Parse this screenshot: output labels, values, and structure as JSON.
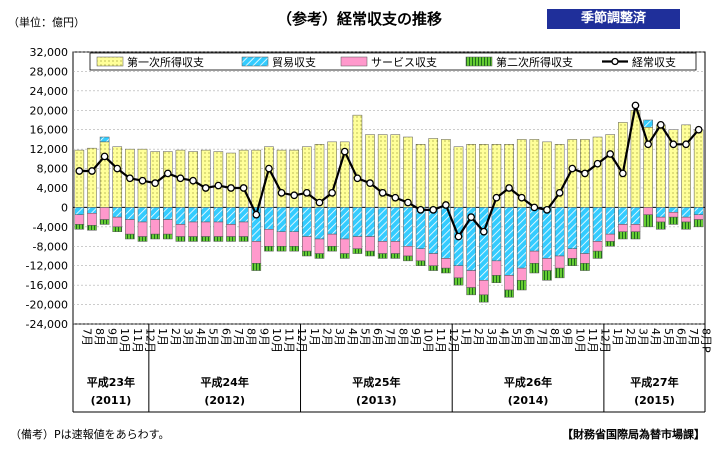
{
  "header": {
    "unit": "（単位：億円）",
    "title": "（参考）経常収支の推移",
    "badge": "季節調整済"
  },
  "footer": {
    "note": "（備考）Pは速報値をあらわす。",
    "source": "【財務省国際局為替市場課】"
  },
  "colors": {
    "primary_income": "#ffff99",
    "trade": "#33ccff",
    "services": "#ff99cc",
    "secondary_income": "#66cc33",
    "current_account": "#000000"
  },
  "chart_data": {
    "type": "bar",
    "stacked": true,
    "ylim": [
      -24000,
      32000
    ],
    "ytick_step": 4000,
    "grid": true,
    "legend_position": "top",
    "yticks": [
      "32,000",
      "28,000",
      "24,000",
      "20,000",
      "16,000",
      "12,000",
      "8,000",
      "4,000",
      "0",
      "-4,000",
      "-8,000",
      "-12,000",
      "-16,000",
      "-20,000",
      "-24,000"
    ],
    "categories": [
      "7月",
      "8月",
      "9月",
      "10月",
      "11月",
      "12月",
      "1月",
      "2月",
      "3月",
      "4月",
      "5月",
      "6月",
      "7月",
      "8月",
      "9月",
      "10月",
      "11月",
      "12月",
      "1月",
      "2月",
      "3月",
      "4月",
      "5月",
      "6月",
      "7月",
      "8月",
      "9月",
      "10月",
      "11月",
      "12月",
      "1月",
      "2月",
      "3月",
      "4月",
      "5月",
      "6月",
      "7月",
      "8月",
      "9月",
      "10月",
      "11月",
      "12月",
      "1月",
      "2月",
      "3月",
      "4月",
      "5月",
      "6月",
      "7月",
      "8月P"
    ],
    "years": [
      {
        "label": "平成23年",
        "sub": "(2011)",
        "start": 0,
        "end": 5
      },
      {
        "label": "平成24年",
        "sub": "(2012)",
        "start": 6,
        "end": 17
      },
      {
        "label": "平成25年",
        "sub": "(2013)",
        "start": 18,
        "end": 29
      },
      {
        "label": "平成26年",
        "sub": "(2014)",
        "start": 30,
        "end": 41
      },
      {
        "label": "平成27年",
        "sub": "(2015)",
        "start": 42,
        "end": 49
      }
    ],
    "series": [
      {
        "name": "第一次所得収支",
        "key": "primary_income",
        "values": [
          11800,
          12200,
          13500,
          12500,
          12000,
          12000,
          11500,
          11500,
          11800,
          11500,
          11800,
          11500,
          11200,
          11800,
          11800,
          12500,
          11800,
          11800,
          12500,
          13000,
          13500,
          13500,
          19000,
          15000,
          15000,
          15000,
          14500,
          13000,
          14200,
          14000,
          12500,
          13000,
          13000,
          13000,
          13000,
          14000,
          14000,
          13500,
          13000,
          14000,
          14000,
          14500,
          15000,
          17500,
          20000,
          16500,
          17000,
          16000,
          17000,
          16000
        ]
      },
      {
        "name": "貿易収支",
        "key": "trade",
        "values": [
          -1500,
          -1200,
          1000,
          -2000,
          -2500,
          -3000,
          -2500,
          -2500,
          -3500,
          -3000,
          -3000,
          -3000,
          -3500,
          -3000,
          -7000,
          -4500,
          -5000,
          -5000,
          -6000,
          -6500,
          -5500,
          -6500,
          -6000,
          -6000,
          -7000,
          -7000,
          -8000,
          -8500,
          -9500,
          -10500,
          -12000,
          -13000,
          -15000,
          -11000,
          -14000,
          -12500,
          -9000,
          -10500,
          -10000,
          -8500,
          -9500,
          -7000,
          -5500,
          -3500,
          -3500,
          1500,
          -2000,
          -1000,
          -2000,
          -1500
        ]
      },
      {
        "name": "サービス収支",
        "key": "services",
        "values": [
          -2000,
          -2500,
          -2500,
          -2000,
          -3000,
          -3000,
          -3000,
          -3000,
          -2500,
          -3000,
          -3000,
          -3000,
          -2500,
          -3000,
          -4500,
          -3500,
          -3000,
          -3000,
          -3000,
          -3000,
          -2500,
          -3000,
          -2500,
          -3000,
          -2500,
          -2500,
          -2000,
          -2500,
          -2500,
          -2000,
          -2500,
          -3500,
          -3000,
          -3000,
          -3000,
          -2500,
          -2500,
          -2500,
          -2500,
          -2000,
          -2000,
          -2000,
          -1500,
          -1500,
          -1500,
          -1500,
          -1000,
          -1000,
          -1000,
          -1000
        ]
      },
      {
        "name": "第二次所得収支",
        "key": "secondary_income",
        "values": [
          -1000,
          -1000,
          -1000,
          -1000,
          -1000,
          -1000,
          -1000,
          -1000,
          -1000,
          -1000,
          -1000,
          -1000,
          -1000,
          -1000,
          -1500,
          -1000,
          -1000,
          -1000,
          -1000,
          -1000,
          -1000,
          -1000,
          -1000,
          -1000,
          -1000,
          -1000,
          -1000,
          -1000,
          -1000,
          -1000,
          -1500,
          -1500,
          -1500,
          -1500,
          -1500,
          -2000,
          -2000,
          -2000,
          -2000,
          -1500,
          -1500,
          -1500,
          -1000,
          -1500,
          -1500,
          -2500,
          -1500,
          -1500,
          -1500,
          -1500
        ]
      },
      {
        "name": "経常収支",
        "key": "current_account",
        "type": "line",
        "values": [
          7500,
          7500,
          10500,
          8000,
          6000,
          5500,
          5000,
          7000,
          6000,
          5500,
          4000,
          4500,
          4000,
          4000,
          -1500,
          8000,
          3000,
          2500,
          3000,
          1000,
          3000,
          11500,
          6000,
          5000,
          3000,
          2000,
          1000,
          -500,
          -500,
          500,
          -6000,
          -2000,
          -5000,
          2000,
          4000,
          2000,
          0,
          -500,
          3000,
          8000,
          7000,
          9000,
          11000,
          7000,
          21000,
          13000,
          17000,
          13000,
          13000,
          16000
        ]
      }
    ]
  }
}
